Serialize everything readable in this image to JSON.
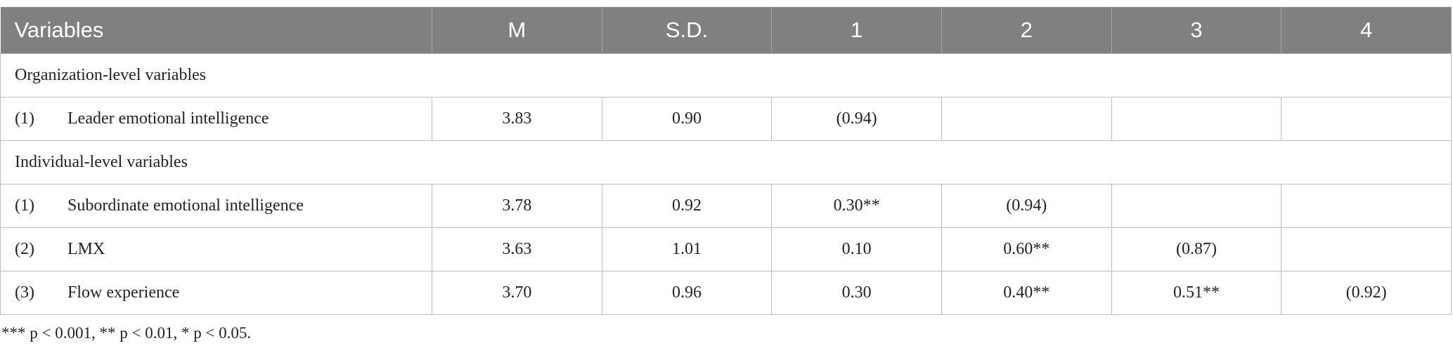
{
  "table": {
    "header": [
      "Variables",
      "M",
      "S.D.",
      "1",
      "2",
      "3",
      "4"
    ],
    "rows": [
      {
        "section": "Organization-level variables"
      },
      {
        "number": "(1)",
        "name": "Leader emotional intelligence",
        "cells": [
          "3.83",
          "0.90",
          "(0.94)"
        ]
      },
      {
        "section": "Individual-level variables"
      },
      {
        "number": "(1)",
        "name": "Subordinate emotional intelligence",
        "cells": [
          "3.78",
          "0.92",
          "0.30**",
          "(0.94)"
        ]
      },
      {
        "number": "(2)",
        "name": "LMX",
        "cells": [
          "3.63",
          "1.01",
          "0.10",
          "0.60**",
          "(0.87)"
        ]
      },
      {
        "number": "(3)",
        "name": "Flow experience",
        "cells": [
          "3.70",
          "0.96",
          "0.30",
          "0.40**",
          "0.51**",
          "(0.92)"
        ]
      }
    ]
  },
  "footnote": "*** p < 0.001, ** p < 0.01, * p < 0.05."
}
